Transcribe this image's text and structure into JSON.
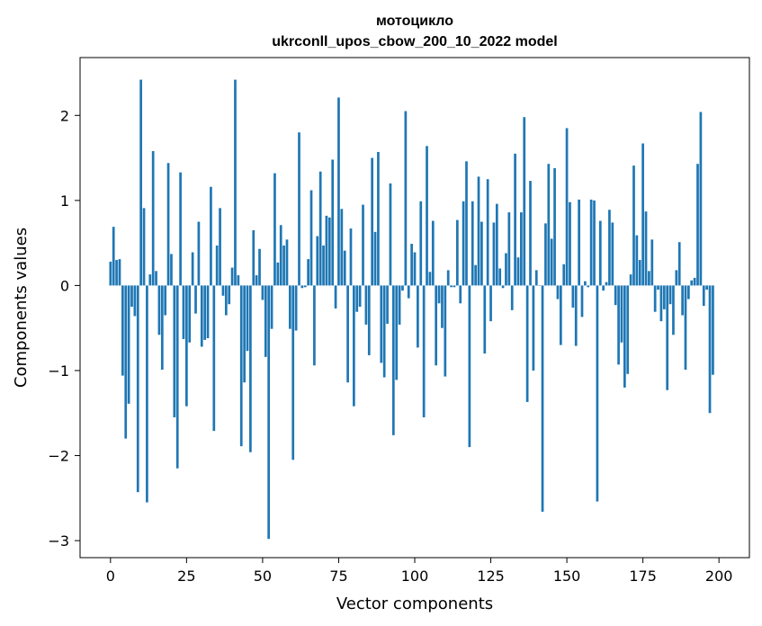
{
  "chart_data": {
    "type": "bar",
    "title_line1": "мотоцикло",
    "title_line2": "ukrconll_upos_cbow_200_10_2022 model",
    "xlabel": "Vector components",
    "ylabel": "Components values",
    "xlim": [
      -10,
      210
    ],
    "ylim": [
      -3.2,
      2.68
    ],
    "xticks": [
      0,
      25,
      50,
      75,
      100,
      125,
      150,
      175,
      200
    ],
    "yticks": [
      -3,
      -2,
      -1,
      0,
      1,
      2
    ],
    "ytick_labels": [
      "−3",
      "−2",
      "−1",
      "0",
      "1",
      "2"
    ],
    "bar_color": "#1f77b4",
    "grid": false,
    "values": [
      0.28,
      0.69,
      0.3,
      0.31,
      -1.06,
      -1.8,
      -1.39,
      -0.25,
      -0.36,
      -2.43,
      2.42,
      0.91,
      -2.55,
      0.13,
      1.58,
      0.17,
      -0.58,
      -0.99,
      -0.35,
      1.44,
      0.37,
      -1.55,
      -2.15,
      1.33,
      -0.63,
      -1.42,
      -0.67,
      0.39,
      -0.33,
      0.75,
      -0.72,
      -0.64,
      -0.62,
      1.16,
      -1.71,
      0.47,
      0.91,
      -0.12,
      -0.35,
      -0.22,
      0.21,
      2.42,
      0.12,
      -1.89,
      -1.14,
      -0.77,
      -1.96,
      0.65,
      0.12,
      0.43,
      -0.17,
      -0.84,
      -2.98,
      -0.51,
      1.32,
      0.27,
      0.71,
      0.47,
      0.54,
      -0.51,
      -2.05,
      -0.53,
      1.8,
      -0.03,
      -0.02,
      0.31,
      1.12,
      -0.94,
      0.58,
      1.34,
      0.47,
      0.82,
      0.8,
      1.48,
      -0.27,
      2.21,
      0.9,
      0.41,
      -1.14,
      0.67,
      -1.42,
      -0.31,
      -0.25,
      0.95,
      -0.46,
      -0.82,
      1.5,
      0.63,
      1.57,
      -0.91,
      -1.08,
      -0.45,
      1.2,
      -1.76,
      -1.11,
      -0.46,
      -0.06,
      2.05,
      -0.15,
      0.49,
      0.39,
      -0.73,
      0.99,
      -1.55,
      1.64,
      0.16,
      0.76,
      -0.94,
      -0.21,
      -0.5,
      -1.07,
      0.18,
      -0.02,
      -0.02,
      0.77,
      -0.21,
      0.99,
      1.46,
      -1.9,
      0.99,
      0.24,
      1.28,
      0.75,
      -0.8,
      1.25,
      -0.42,
      0.74,
      0.96,
      0.2,
      -0.03,
      0.38,
      0.86,
      -0.29,
      1.55,
      0.33,
      0.86,
      1.98,
      -1.37,
      1.23,
      -1.0,
      0.18,
      0.0,
      -2.66,
      0.73,
      1.43,
      0.55,
      1.38,
      -0.16,
      -0.7,
      0.25,
      1.85,
      0.98,
      -0.26,
      -0.71,
      1.01,
      -0.37,
      0.05,
      -0.02,
      1.01,
      1.0,
      -2.54,
      0.76,
      -0.06,
      0.04,
      0.89,
      0.74,
      -0.23,
      -0.93,
      -0.67,
      -1.2,
      -1.04,
      0.13,
      1.41,
      0.59,
      0.3,
      1.67,
      0.87,
      0.17,
      0.54,
      -0.31,
      -0.05,
      -0.42,
      -0.28,
      -1.23,
      -0.22,
      -0.58,
      0.18,
      0.51,
      -0.35,
      -0.99,
      -0.16,
      0.06,
      0.09,
      1.43,
      2.04,
      -0.24,
      -0.05,
      -1.5,
      -1.05
    ]
  }
}
